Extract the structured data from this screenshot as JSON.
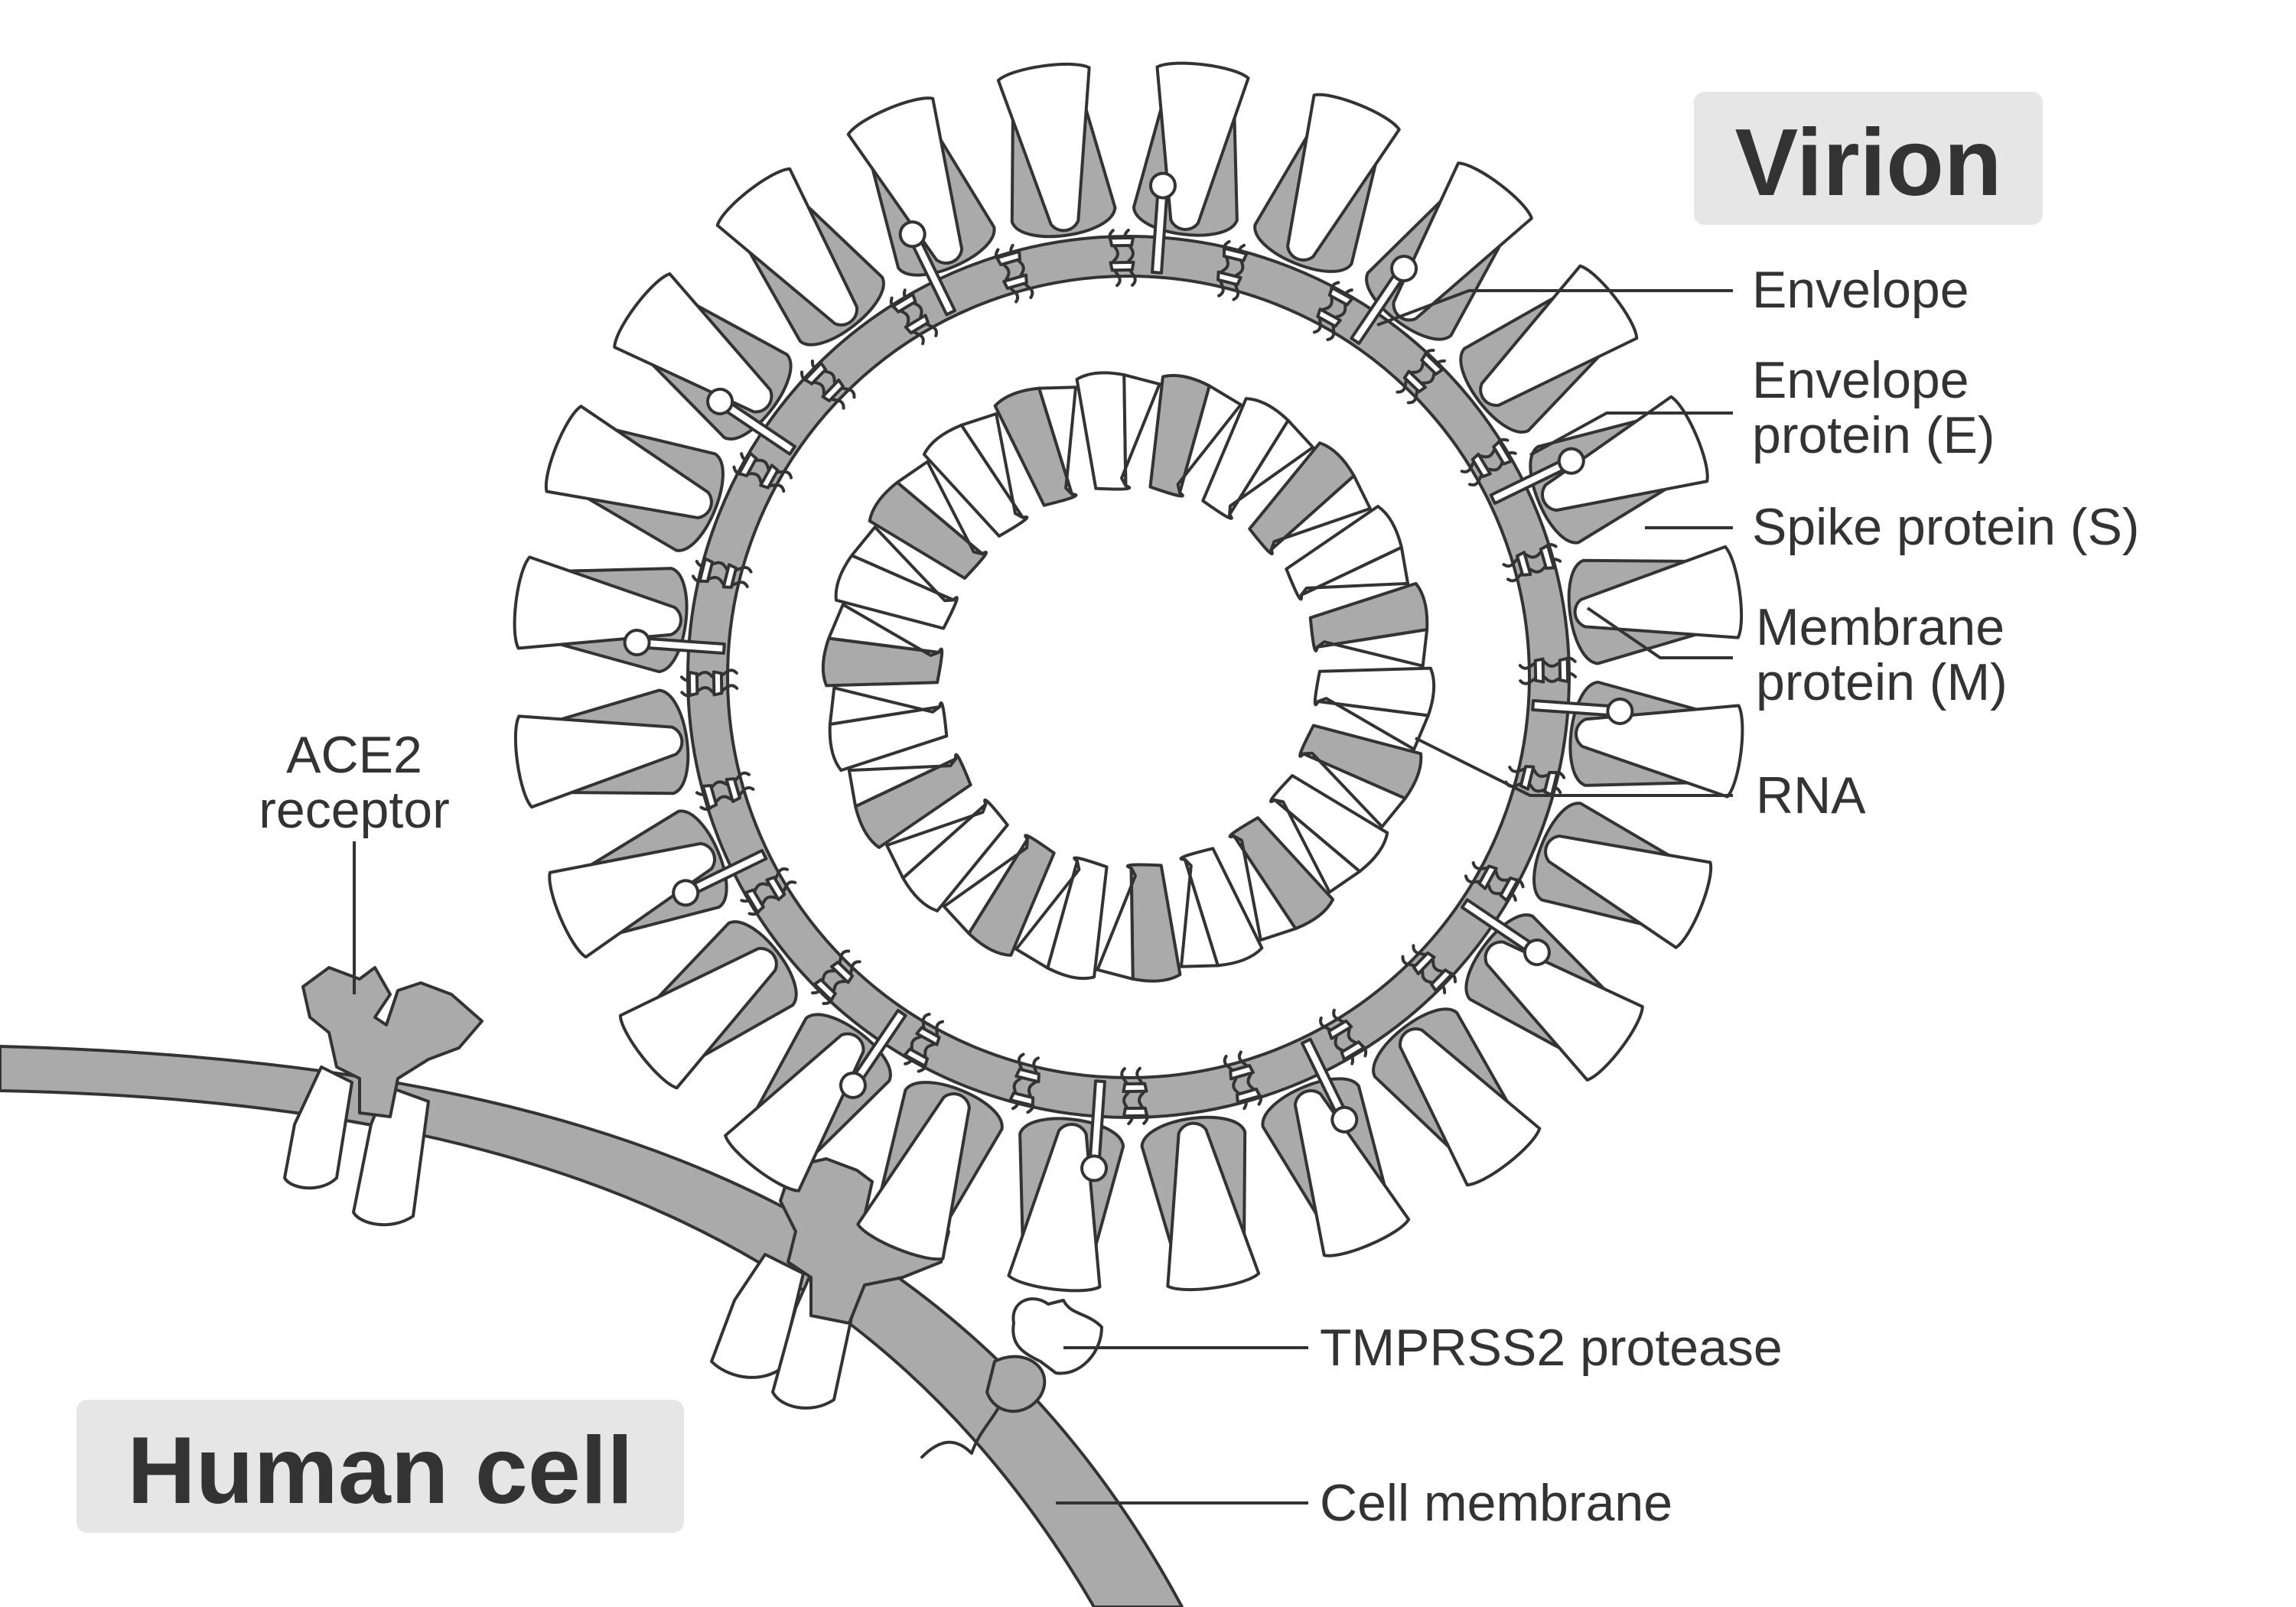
{
  "titles": {
    "virion": "Virion",
    "human_cell": "Human cell"
  },
  "labels": {
    "envelope": "Envelope",
    "envelope_protein_line1": "Envelope",
    "envelope_protein_line2": "protein (E)",
    "spike_protein": "Spike protein (S)",
    "membrane_protein_line1": "Membrane",
    "membrane_protein_line2": "protein (M)",
    "rna": "RNA",
    "ace2_line1": "ACE2",
    "ace2_line2": "receptor",
    "tmprss2": "TMPRSS2 protease",
    "cell_membrane": "Cell membrane"
  },
  "colors": {
    "ink": "#333333",
    "gray_fill": "#aaaaaa",
    "title_box": "#e6e6e6",
    "white": "#ffffff"
  }
}
